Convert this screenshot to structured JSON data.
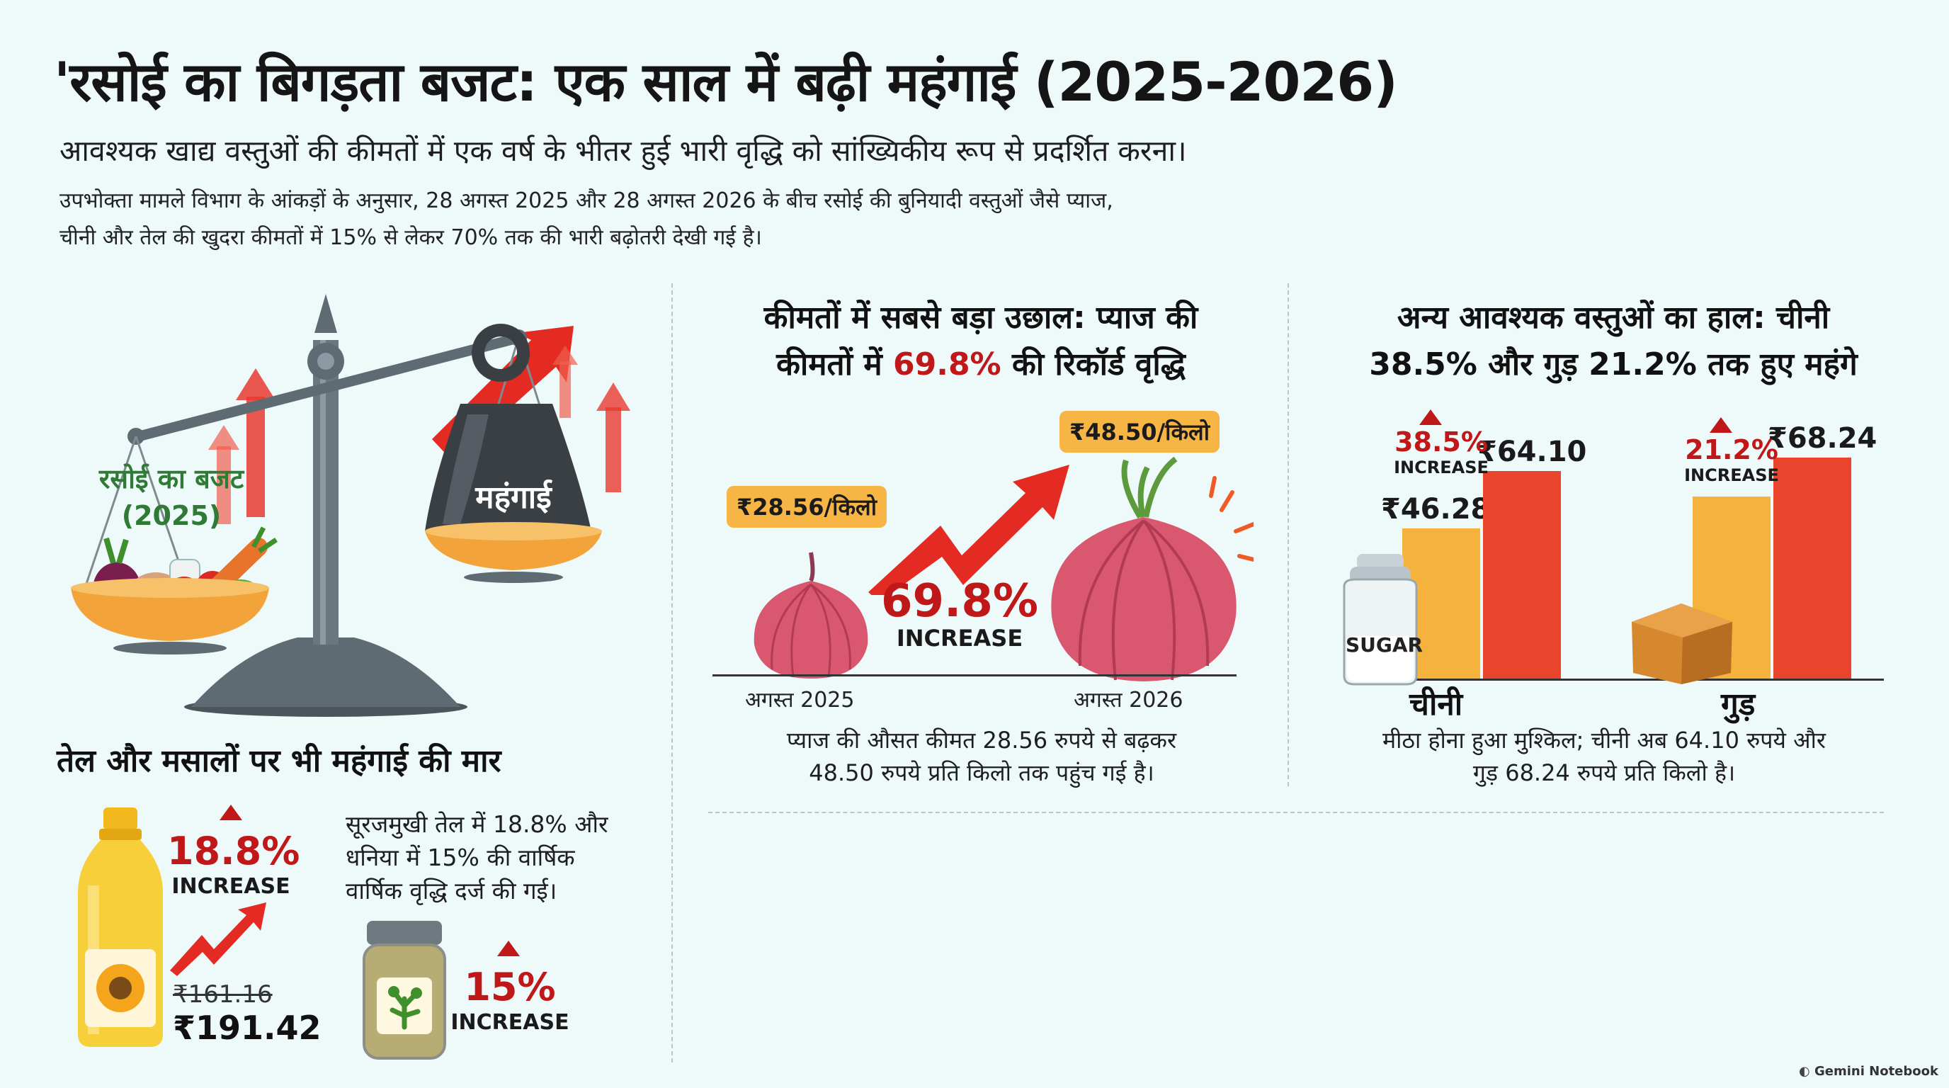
{
  "header": {
    "title": "'रसोई का बिगड़ता बजट: एक साल में बढ़ी महंगाई (2025-2026)",
    "subtitle": "आवश्यक खाद्य वस्तुओं की कीमतों में एक वर्ष के भीतर हुई भारी वृद्धि को सांख्यिकीय रूप से प्रदर्शित करना।",
    "intro_line1": "उपभोक्ता मामले विभाग के आंकड़ों के अनुसार, 28 अगस्त 2025 और 28 अगस्त 2026 के बीच रसोई की बुनियादी वस्तुओं जैसे प्याज,",
    "intro_line2": "चीनी और तेल की खुदरा कीमतों में 15% से लेकर 70% तक की भारी बढ़ोतरी देखी गई है।"
  },
  "scale": {
    "budget_label_line1": "रसोई का बजट",
    "budget_label_line2": "(2025)",
    "weight_label": "महंगाई"
  },
  "oil_section": {
    "heading": "तेल और मसालों पर भी महंगाई की मार",
    "oil_pct": "18.8%",
    "oil_inc": "INCREASE",
    "old_price": "₹161.16",
    "new_price": "₹191.42",
    "note_line1": "सूरजमुखी तेल में 18.8% और",
    "note_line2": "धनिया में 15% की वार्षिक",
    "note_line3": "वार्षिक वृद्धि दर्ज की गई।",
    "coriander_pct": "15%",
    "coriander_inc": "INCREASE"
  },
  "onion_section": {
    "heading_line1": "कीमतों में सबसे बड़ा उछाल: प्याज की",
    "heading_line2_pre": "कीमतों में ",
    "heading_line2_pct": "69.8%",
    "heading_line2_post": " की रिकॉर्ड वृद्धि",
    "old_price_tag": "₹28.56/किलो",
    "new_price_tag": "₹48.50/किलो",
    "pct": "69.8%",
    "inc": "INCREASE",
    "label_2025": "अगस्त 2025",
    "label_2026": "अगस्त 2026",
    "caption_line1": "प्याज की औसत कीमत 28.56 रुपये से बढ़कर",
    "caption_line2": "48.50 रुपये प्रति किलो तक पहुंच गई है।"
  },
  "other_section": {
    "heading_line1": "अन्य आवश्यक वस्तुओं का हाल: चीनी",
    "heading_line2": "38.5% और गुड़ 21.2% तक हुए महंगे",
    "sugar_jar_label": "SUGAR",
    "caption_line1": "मीठा होना हुआ मुश्किल; चीनी अब 64.10 रुपये और",
    "caption_line2": "गुड़ 68.24 रुपये प्रति किलो है।"
  },
  "chart_data": {
    "type": "bar",
    "categories": [
      "चीनी",
      "गुड़"
    ],
    "series": [
      {
        "values": [
          46.28,
          56.31
        ]
      },
      {
        "values": [
          64.1,
          68.24
        ]
      }
    ],
    "value_labels": [
      [
        "₹46.28",
        ""
      ],
      [
        "₹64.10",
        "₹68.24"
      ]
    ],
    "increase_pct": [
      "38.5%",
      "21.2%"
    ],
    "increase_word": "INCREASE",
    "ylim": [
      0,
      70
    ],
    "colors": [
      "#f5b23c",
      "#e8452c"
    ]
  },
  "footer": {
    "watermark": "Gemini Notebook"
  },
  "colors": {
    "accent_red": "#c01818",
    "bar_old": "#f5b23c",
    "bar_new": "#e8452c",
    "tag": "#f6b545",
    "background": "#eef9fa"
  }
}
